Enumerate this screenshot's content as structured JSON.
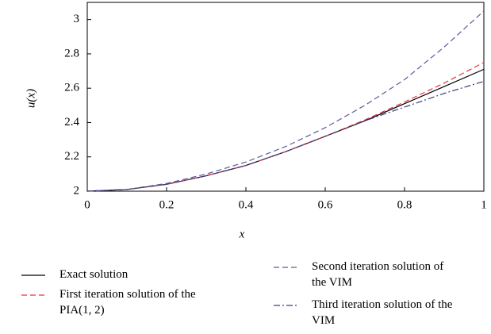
{
  "chart_data": {
    "type": "line",
    "xlabel": "x",
    "ylabel": "u(x)",
    "x": [
      0,
      0.1,
      0.2,
      0.3,
      0.4,
      0.5,
      0.6,
      0.7,
      0.8,
      0.9,
      1
    ],
    "series": [
      {
        "name": "Exact solution",
        "color": "#000000",
        "dash": "solid",
        "values": [
          2,
          2.01,
          2.04,
          2.09,
          2.15,
          2.23,
          2.32,
          2.41,
          2.51,
          2.61,
          2.71
        ]
      },
      {
        "name": "First iteration solution of the PIA(1, 2)",
        "color": "#e8323c",
        "dash": "dashed",
        "values": [
          2,
          2.01,
          2.04,
          2.09,
          2.15,
          2.23,
          2.32,
          2.415,
          2.52,
          2.63,
          2.75
        ]
      },
      {
        "name": "Second iteration solution of the VIM",
        "color": "#5a5c9c",
        "dash": "dashed",
        "values": [
          2,
          2.01,
          2.045,
          2.1,
          2.17,
          2.26,
          2.37,
          2.5,
          2.65,
          2.84,
          3.05
        ]
      },
      {
        "name": "Third iteration solution of the VIM",
        "color": "#3b3d7a",
        "dash": "dashdot",
        "values": [
          2,
          2.01,
          2.04,
          2.09,
          2.15,
          2.23,
          2.32,
          2.41,
          2.49,
          2.57,
          2.64
        ]
      }
    ],
    "xlim": [
      0,
      1
    ],
    "xticks": [
      0,
      0.2,
      0.4,
      0.6,
      0.8,
      1
    ],
    "ylim": [
      2,
      3.1
    ],
    "yticks": [
      2,
      2.2,
      2.4,
      2.6,
      2.8,
      3
    ],
    "grid": false
  }
}
